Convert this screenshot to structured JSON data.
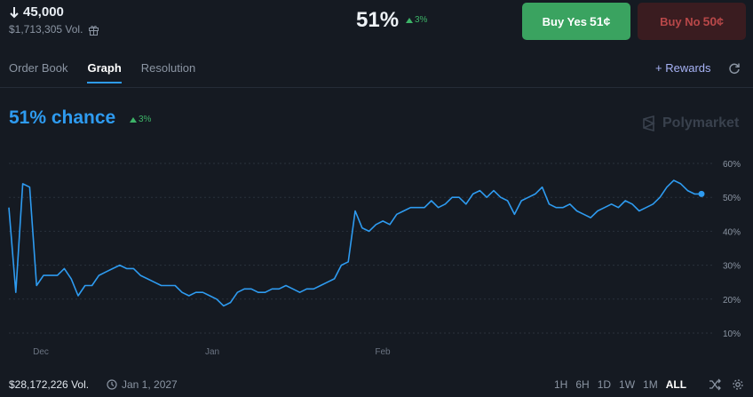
{
  "header": {
    "strike": "45,000",
    "volume": "$1,713,305 Vol.",
    "price_pct": "51%",
    "price_delta": "3%",
    "buy_yes": {
      "label": "Buy Yes",
      "price": "51¢"
    },
    "buy_no": {
      "label": "Buy No",
      "price": "50¢"
    }
  },
  "tabs": [
    "Order Book",
    "Graph",
    "Resolution"
  ],
  "active_tab": "Graph",
  "rewards_label": "+ Rewards",
  "chart_header": {
    "chance": "51% chance",
    "delta": "3%",
    "brand": "Polymarket"
  },
  "footer": {
    "volume": "$28,172,226 Vol.",
    "end_date": "Jan 1, 2027",
    "ranges": [
      "1H",
      "6H",
      "1D",
      "1W",
      "1M",
      "ALL"
    ],
    "selected_range": "ALL"
  },
  "colors": {
    "line": "#2e9bf0",
    "positive": "#3db468",
    "buy_yes_bg": "#3aa360",
    "buy_no_bg": "#3a1c20"
  },
  "chart_data": {
    "type": "line",
    "title": "",
    "xlabel": "",
    "ylabel": "",
    "x_ticks": [
      "Dec",
      "Jan",
      "Feb"
    ],
    "y_ticks": [
      "60%",
      "50%",
      "40%",
      "30%",
      "20%",
      "10%"
    ],
    "ylim": [
      5,
      62
    ],
    "grid": true,
    "series": [
      {
        "name": "",
        "x": [
          0,
          1,
          2,
          3,
          4,
          5,
          6,
          7,
          8,
          9,
          10,
          11,
          12,
          13,
          14,
          15,
          16,
          17,
          18,
          19,
          20,
          21,
          22,
          23,
          24,
          25,
          26,
          27,
          28,
          29,
          30,
          31,
          32,
          33,
          34,
          35,
          36,
          37,
          38,
          39,
          40,
          41,
          42,
          43,
          44,
          45,
          46,
          47,
          48,
          49,
          50,
          51,
          52,
          53,
          54,
          55,
          56,
          57,
          58,
          59,
          60,
          61,
          62,
          63,
          64,
          65,
          66,
          67,
          68,
          69,
          70,
          71,
          72,
          73,
          74,
          75,
          76,
          77,
          78,
          79,
          80,
          81,
          82,
          83,
          84,
          85,
          86,
          87,
          88,
          89,
          90,
          91,
          92,
          93,
          94,
          95,
          96,
          97,
          98,
          99,
          100
        ],
        "values": [
          47,
          22,
          54,
          53,
          24,
          27,
          27,
          27,
          29,
          26,
          21,
          24,
          24,
          27,
          28,
          29,
          30,
          29,
          29,
          27,
          26,
          25,
          24,
          24,
          24,
          22,
          21,
          22,
          22,
          21,
          20,
          18,
          19,
          22,
          23,
          23,
          22,
          22,
          23,
          23,
          24,
          23,
          22,
          23,
          23,
          24,
          25,
          26,
          30,
          31,
          46,
          41,
          40,
          42,
          43,
          42,
          45,
          46,
          47,
          47,
          47,
          49,
          47,
          48,
          50,
          50,
          48,
          51,
          52,
          50,
          52,
          50,
          49,
          45,
          49,
          50,
          51,
          53,
          48,
          47,
          47,
          48,
          46,
          45,
          44,
          46,
          47,
          48,
          47,
          49,
          48,
          46,
          47,
          48,
          50,
          53,
          55,
          54,
          52,
          51,
          51
        ]
      }
    ]
  }
}
